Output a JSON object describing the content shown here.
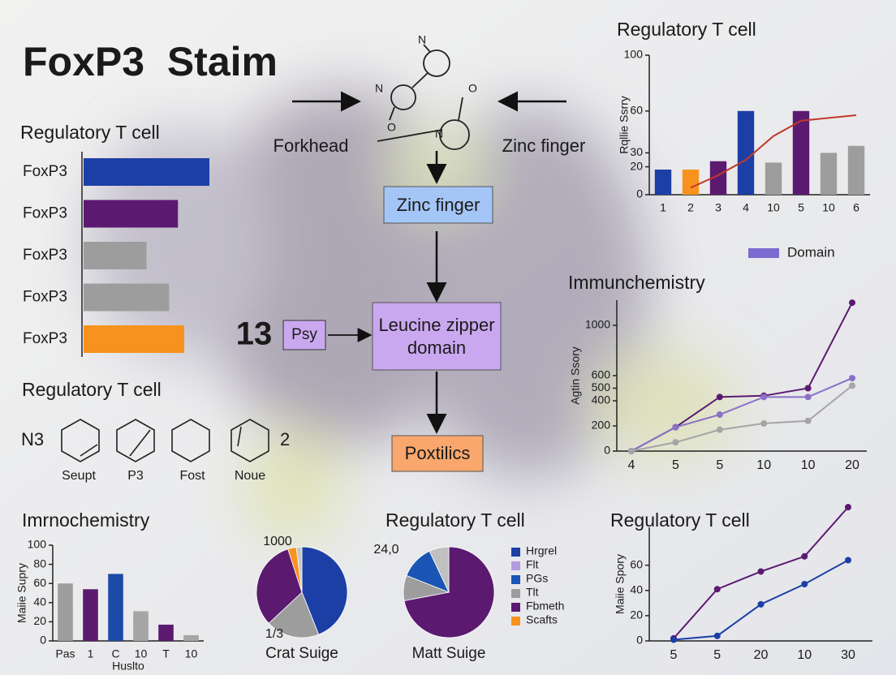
{
  "title": "FoxP3  Staim",
  "diagram": {
    "left_label": "Forkhead",
    "right_label": "Zinc finger",
    "atoms": [
      "N",
      "N",
      "O",
      "O",
      "N"
    ],
    "zinc_box": "Zinc finger",
    "leucine_box": [
      "Leucine zipper",
      "domain"
    ],
    "end_box": "Poxtilics",
    "number": "13",
    "small_box": "Psy"
  },
  "hexagons": {
    "title": "Regulatory T cell",
    "left": "N3",
    "right": "2",
    "labels": [
      "Seupt",
      "P3",
      "Fost",
      "Noue"
    ]
  },
  "chart_data": [
    {
      "type": "hbar",
      "title": "Regulatory T cell",
      "categories": [
        "FoxP3",
        "FoxP3",
        "FoxP3",
        "FoxP3",
        "FoxP3"
      ],
      "values": [
        100,
        75,
        50,
        68,
        80
      ],
      "colors": [
        "#1c3fa6",
        "#5b1a70",
        "#9d9d9d",
        "#9d9d9d",
        "#f7921e"
      ]
    },
    {
      "type": "bar",
      "title": "Regulatory T cell",
      "y_label": "Rqllie Ssrry",
      "categories": [
        "1",
        "2",
        "3",
        "4",
        "10",
        "5",
        "10",
        "6"
      ],
      "series": [
        {
          "name": "Domain",
          "type": "bar",
          "color": "#7b6bd0",
          "colors": [
            "#1c3fa6",
            "#f7921e",
            "#5b1a70",
            "#1c3fa6",
            "#9d9d9d",
            "#5b1a70",
            "#9d9d9d",
            "#9d9d9d"
          ],
          "values": [
            18,
            18,
            24,
            60,
            23,
            60,
            30,
            35
          ]
        },
        {
          "type": "line",
          "color": "#c0392b",
          "values": [
            null,
            5,
            14,
            25,
            42,
            53,
            55,
            57
          ]
        }
      ],
      "ylim": [
        0,
        100
      ],
      "yticks": [
        0,
        20,
        30,
        60,
        100
      ],
      "legend": "bottom-right"
    },
    {
      "type": "line",
      "title": "Immunchemistry",
      "y_label": "Agtin Ssory",
      "categories": [
        "4",
        "5",
        "5",
        "10",
        "10",
        "20"
      ],
      "series": [
        {
          "color": "#5b1a70",
          "values": [
            0,
            190,
            430,
            440,
            500,
            1180
          ]
        },
        {
          "color": "#8a70c8",
          "values": [
            0,
            190,
            290,
            430,
            430,
            580
          ]
        },
        {
          "color": "#a5a5a5",
          "values": [
            0,
            70,
            170,
            220,
            240,
            520
          ]
        }
      ],
      "ylim": [
        0,
        1200
      ],
      "yticks": [
        0,
        200,
        400,
        500,
        600,
        1000
      ]
    },
    {
      "type": "bar",
      "title": "Imrnochemistry",
      "y_label": "Maiie Supry",
      "x_label": "Huslto",
      "categories": [
        "Pas",
        "1",
        "C",
        "10",
        "T",
        "10"
      ],
      "values": [
        60,
        54,
        70,
        31,
        17,
        6
      ],
      "colors": [
        "#9d9d9d",
        "#5b1a70",
        "#1c4aa8",
        "#a5a5a5",
        "#5b1a70",
        "#a5a5a5"
      ],
      "ylim": [
        0,
        100
      ],
      "yticks": [
        0,
        20,
        40,
        60,
        80,
        100
      ]
    },
    {
      "type": "pie",
      "label": "Crat Suige",
      "annotations": [
        "1000",
        "1/3"
      ],
      "values": [
        44,
        19,
        32,
        3,
        2
      ],
      "colors": [
        "#1c3fa6",
        "#9d9d9d",
        "#5b1a70",
        "#f7921e",
        "#c8c8c8"
      ]
    },
    {
      "type": "pie",
      "title": "Regulatory T cell",
      "label": "Matt Suige",
      "annotations": [
        "24,0"
      ],
      "values": [
        72,
        9,
        12,
        7
      ],
      "colors": [
        "#5b1a70",
        "#9d9d9d",
        "#1a55b5",
        "#c0c0c0"
      ],
      "legend": [
        {
          "name": "Hrgrel",
          "color": "#1c3fa6"
        },
        {
          "name": "Flt",
          "color": "#b39be0"
        },
        {
          "name": "PGs",
          "color": "#1a55b5"
        },
        {
          "name": "Tlt",
          "color": "#9d9d9d"
        },
        {
          "name": "Fbmeth",
          "color": "#5b1a70"
        },
        {
          "name": "Scafts",
          "color": "#f7921e"
        }
      ]
    },
    {
      "type": "line",
      "title": "Regulatory T cell",
      "y_label": "Maiie Spory",
      "categories": [
        "5",
        "5",
        "20",
        "10",
        "30"
      ],
      "series": [
        {
          "color": "#5b1a70",
          "values": [
            2,
            41,
            55,
            67,
            106
          ]
        },
        {
          "color": "#1c3fa6",
          "values": [
            1,
            4,
            29,
            45,
            64
          ]
        }
      ],
      "ylim": [
        0,
        90
      ],
      "yticks": [
        0,
        20,
        40,
        60
      ]
    }
  ]
}
